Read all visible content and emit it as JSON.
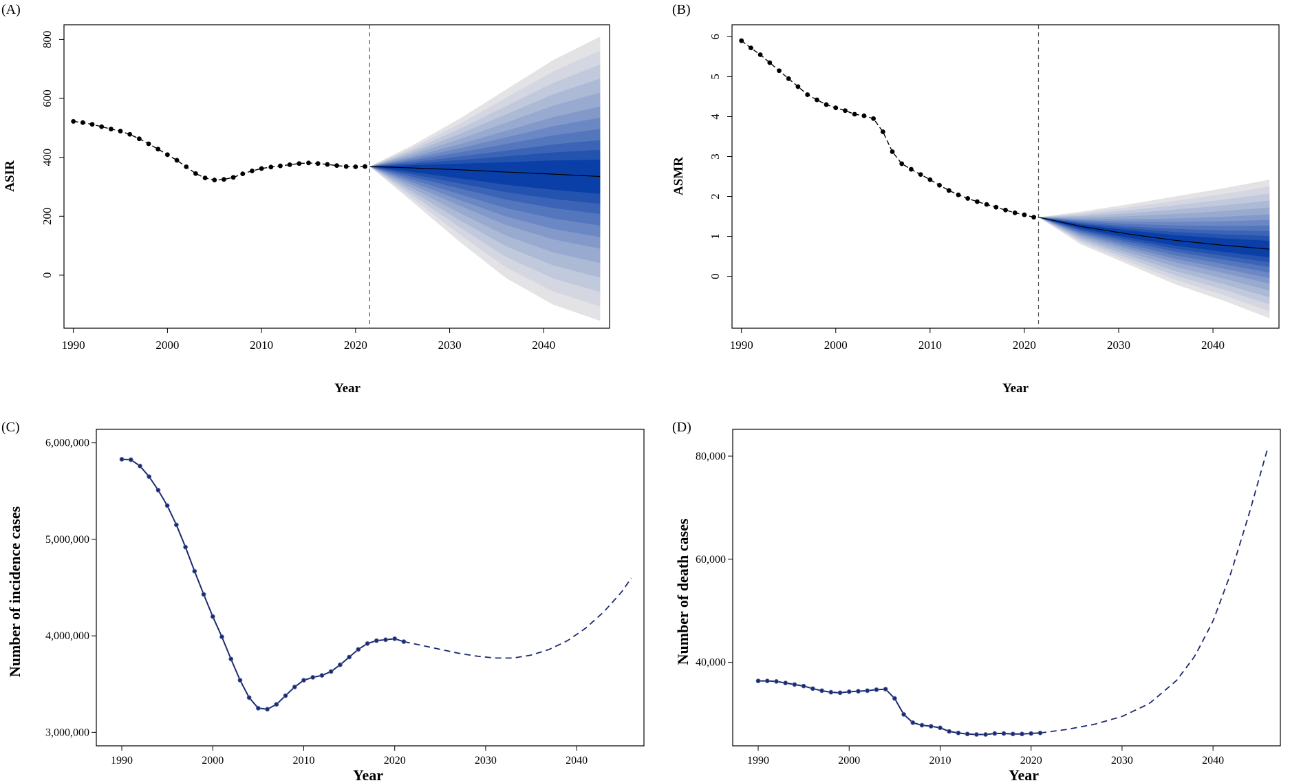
{
  "chart_data": [
    {
      "panel_label": "(A)",
      "type": "line",
      "ylabel": "ASIR",
      "xlabel": "Year",
      "xlim": [
        1989,
        2047
      ],
      "ylim": [
        -180,
        850
      ],
      "xticks": [
        "1990",
        "2000",
        "2010",
        "2020",
        "2030",
        "2040"
      ],
      "yticks": [
        "0",
        "200",
        "400",
        "600",
        "800"
      ],
      "observed": {
        "x": [
          1990,
          1991,
          1992,
          1993,
          1994,
          1995,
          1996,
          1997,
          1998,
          1999,
          2000,
          2001,
          2002,
          2003,
          2004,
          2005,
          2006,
          2007,
          2008,
          2009,
          2010,
          2011,
          2012,
          2013,
          2014,
          2015,
          2016,
          2017,
          2018,
          2019,
          2020,
          2021
        ],
        "y": [
          522,
          518,
          512,
          504,
          496,
          489,
          478,
          463,
          446,
          428,
          409,
          390,
          368,
          345,
          330,
          323,
          325,
          332,
          344,
          354,
          362,
          367,
          371,
          375,
          379,
          381,
          379,
          376,
          372,
          369,
          368,
          369
        ]
      },
      "cutoff_year": 2021.5,
      "forecast": {
        "x": [
          2021.5,
          2026,
          2031,
          2036,
          2041,
          2046
        ],
        "mean": [
          369,
          364,
          358,
          350,
          343,
          335
        ],
        "lower": [
          369,
          250,
          115,
          -10,
          -100,
          -155
        ],
        "upper": [
          369,
          440,
          530,
          630,
          730,
          810
        ]
      },
      "colors": {
        "band_inner": "#0b3fa8",
        "band_outer": "#e3e3e6",
        "line": "#000000"
      }
    },
    {
      "panel_label": "(B)",
      "type": "line",
      "ylabel": "ASMR",
      "xlabel": "Year",
      "xlim": [
        1989,
        2047
      ],
      "ylim": [
        -1.3,
        6.3
      ],
      "xticks": [
        "1990",
        "2000",
        "2010",
        "2020",
        "2030",
        "2040"
      ],
      "yticks": [
        "0",
        "1",
        "2",
        "3",
        "4",
        "5",
        "6"
      ],
      "observed": {
        "x": [
          1990,
          1991,
          1992,
          1993,
          1994,
          1995,
          1996,
          1997,
          1998,
          1999,
          2000,
          2001,
          2002,
          2003,
          2004,
          2005,
          2006,
          2007,
          2008,
          2009,
          2010,
          2011,
          2012,
          2013,
          2014,
          2015,
          2016,
          2017,
          2018,
          2019,
          2020,
          2021
        ],
        "y": [
          5.9,
          5.72,
          5.55,
          5.35,
          5.15,
          4.95,
          4.75,
          4.55,
          4.42,
          4.3,
          4.22,
          4.15,
          4.06,
          4.02,
          3.95,
          3.62,
          3.12,
          2.82,
          2.68,
          2.55,
          2.42,
          2.28,
          2.15,
          2.04,
          1.95,
          1.87,
          1.8,
          1.73,
          1.66,
          1.59,
          1.54,
          1.48
        ]
      },
      "cutoff_year": 2021.5,
      "forecast": {
        "x": [
          2021.5,
          2026,
          2031,
          2036,
          2041,
          2046
        ],
        "mean": [
          1.48,
          1.25,
          1.06,
          0.9,
          0.78,
          0.68
        ],
        "lower": [
          1.48,
          0.8,
          0.3,
          -0.2,
          -0.6,
          -1.05
        ],
        "upper": [
          1.48,
          1.62,
          1.8,
          2.0,
          2.2,
          2.42
        ]
      },
      "colors": {
        "band_inner": "#0b3fa8",
        "band_outer": "#e3e3e6",
        "line": "#000000"
      }
    },
    {
      "panel_label": "(C)",
      "type": "line",
      "ylabel": "Number of incidence cases",
      "xlabel": "Year",
      "xlim": [
        1987.2,
        2047.4
      ],
      "ylim": [
        2860000,
        6140000
      ],
      "xticks": [
        "1990",
        "2000",
        "2010",
        "2020",
        "2030",
        "2040"
      ],
      "yticks": [
        "3,000,000",
        "4,000,000",
        "5,000,000",
        "6,000,000"
      ],
      "observed": {
        "x": [
          1990,
          1991,
          1992,
          1993,
          1994,
          1995,
          1996,
          1997,
          1998,
          1999,
          2000,
          2001,
          2002,
          2003,
          2004,
          2005,
          2006,
          2007,
          2008,
          2009,
          2010,
          2011,
          2012,
          2013,
          2014,
          2015,
          2016,
          2017,
          2018,
          2019,
          2020,
          2021
        ],
        "y": [
          5830000,
          5825000,
          5760000,
          5650000,
          5510000,
          5350000,
          5150000,
          4920000,
          4670000,
          4430000,
          4200000,
          3990000,
          3760000,
          3540000,
          3360000,
          3250000,
          3240000,
          3290000,
          3380000,
          3470000,
          3540000,
          3570000,
          3590000,
          3630000,
          3700000,
          3780000,
          3860000,
          3920000,
          3950000,
          3960000,
          3970000,
          3940000
        ]
      },
      "forecast": {
        "x": [
          2021,
          2023,
          2025,
          2027,
          2029,
          2031,
          2033,
          2035,
          2037,
          2039,
          2041,
          2043,
          2045,
          2046
        ],
        "y": [
          3940000,
          3900000,
          3860000,
          3820000,
          3790000,
          3770000,
          3770000,
          3800000,
          3860000,
          3950000,
          4080000,
          4250000,
          4460000,
          4600000
        ]
      },
      "colors": {
        "line": "#1c2a6e",
        "point": "#1c2a6e"
      }
    },
    {
      "panel_label": "(D)",
      "type": "line",
      "ylabel": "Number of death cases",
      "xlabel": "Year",
      "xlim": [
        1987.2,
        2047.4
      ],
      "ylim": [
        23800,
        85200
      ],
      "xticks": [
        "1990",
        "2000",
        "2010",
        "2020",
        "2030",
        "2040"
      ],
      "yticks": [
        "40,000",
        "60,000",
        "80,000"
      ],
      "observed": {
        "x": [
          1990,
          1991,
          1992,
          1993,
          1994,
          1995,
          1996,
          1997,
          1998,
          1999,
          2000,
          2001,
          2002,
          2003,
          2004,
          2005,
          2006,
          2007,
          2008,
          2009,
          2010,
          2011,
          2012,
          2013,
          2014,
          2015,
          2016,
          2017,
          2018,
          2019,
          2020,
          2021
        ],
        "y": [
          36400,
          36400,
          36300,
          36000,
          35700,
          35400,
          34900,
          34500,
          34200,
          34100,
          34300,
          34400,
          34500,
          34700,
          34800,
          33000,
          29900,
          28300,
          27800,
          27600,
          27300,
          26600,
          26300,
          26100,
          26000,
          26000,
          26200,
          26200,
          26100,
          26100,
          26200,
          26300
        ]
      },
      "forecast": {
        "x": [
          2021,
          2024,
          2027,
          2030,
          2033,
          2036,
          2038,
          2040,
          2042,
          2044,
          2046
        ],
        "y": [
          26300,
          27000,
          28000,
          29500,
          32000,
          36500,
          41200,
          48000,
          57500,
          69000,
          81500
        ]
      },
      "colors": {
        "line": "#1c2a6e",
        "point": "#1c2a6e"
      }
    }
  ]
}
